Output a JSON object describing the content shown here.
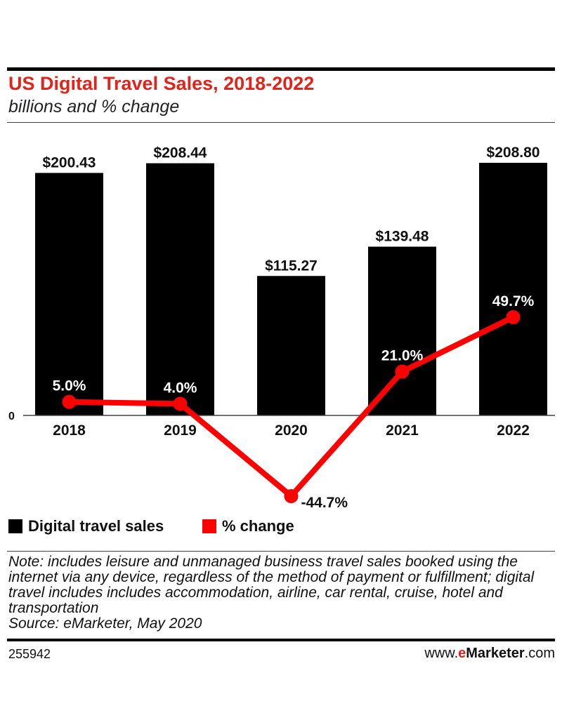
{
  "header": {
    "title": "US Digital Travel Sales, 2018-2022",
    "subtitle": "billions and % change"
  },
  "chart_data": {
    "type": "bar",
    "categories": [
      "2018",
      "2019",
      "2020",
      "2021",
      "2022"
    ],
    "series": [
      {
        "name": "Digital travel sales",
        "type": "bar",
        "values": [
          200.43,
          208.44,
          115.27,
          139.48,
          208.8
        ],
        "labels": [
          "$200.43",
          "$208.44",
          "$115.27",
          "$139.48",
          "$208.80"
        ],
        "color": "#000000"
      },
      {
        "name": "% change",
        "type": "line",
        "values": [
          5.0,
          4.0,
          -44.7,
          21.0,
          49.7
        ],
        "labels": [
          "5.0%",
          "4.0%",
          "-44.7%",
          "21.0%",
          "49.7%"
        ],
        "color": "#ff0000"
      }
    ],
    "zero_label": "0",
    "bar_ylim": [
      0,
      208.8
    ],
    "pct_ylim": [
      -44.7,
      49.7
    ],
    "legend_position": "bottom-left"
  },
  "legend": {
    "items": [
      {
        "label": "Digital travel sales",
        "color": "#000000"
      },
      {
        "label": "% change",
        "color": "#ff0000"
      }
    ]
  },
  "note": {
    "text": "Note: includes leisure and unmanaged business travel sales booked using the internet via any device, regardless of the method of payment or fulfillment; digital travel includes includes accommodation, airline, car rental, cruise, hotel and transportation",
    "source": "Source: eMarketer, May 2020"
  },
  "footer": {
    "chart_id": "255942",
    "brand_prefix": "www.",
    "brand_e": "e",
    "brand_name": "Marketer",
    "brand_suffix": ".com"
  },
  "colors": {
    "title": "#e2231a",
    "bars": "#000000",
    "line": "#ff0000"
  }
}
